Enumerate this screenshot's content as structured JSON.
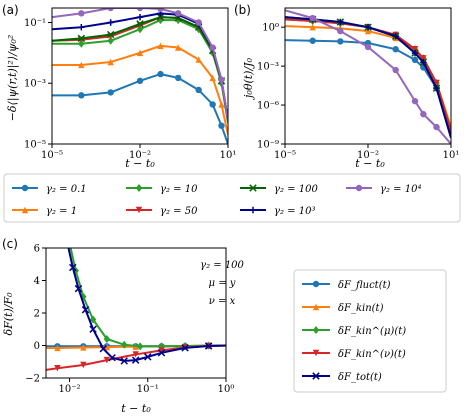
{
  "panels": {
    "a": {
      "label": "(a)",
      "ylabel": "−δ⟨|ψ(r,t)|²⟩/ψ₀²",
      "xlabel": "t − t₀",
      "xticks": [
        "10⁻⁵",
        "10⁻²",
        "10¹"
      ],
      "yticks": [
        "10⁻⁵",
        "10⁻³",
        "10⁻¹"
      ]
    },
    "b": {
      "label": "(b)",
      "ylabel": "j₀θ(t)/J₀",
      "xlabel": "t − t₀",
      "xticks": [
        "10⁻⁵",
        "10⁻²",
        "10¹"
      ],
      "yticks": [
        "10⁻⁹",
        "10⁻⁶",
        "10⁻³",
        "10⁰"
      ]
    },
    "c": {
      "label": "(c)",
      "ylabel": "δF(t)/F₀",
      "xlabel": "t − t₀",
      "xticks": [
        "10⁻²",
        "10⁻¹",
        "10⁰"
      ],
      "yticks": [
        "−2",
        "0",
        "2",
        "4",
        "6"
      ],
      "annotation": [
        "γ₂ = 100",
        "μ = y",
        "ν = x"
      ]
    }
  },
  "legend_top": [
    "γ₂ = 0.1",
    "γ₂ = 10",
    "γ₂ = 100",
    "γ₂ = 10⁴",
    "γ₂ = 1",
    "γ₂ = 50",
    "γ₂ = 10³"
  ],
  "legend_c": [
    "δF_fluct(t)",
    "δF_kin(t)",
    "δF_kin^(μ)(t)",
    "δF_kin^(ν)(t)",
    "δF_tot(t)"
  ],
  "colors": {
    "blue": "#1f77b4",
    "orange": "#ff7f0e",
    "green": "#2ca02c",
    "red": "#d62728",
    "purple": "#9467bd",
    "darkgreen": "#006400",
    "navy": "#00008b"
  },
  "chart_data": [
    {
      "type": "line",
      "title": "(a)",
      "xlabel": "t − t₀",
      "ylabel": "−δ⟨|ψ(r,t)|²⟩/ψ₀²",
      "x_scale": "log",
      "y_scale": "log",
      "xlim": [
        1e-05,
        10
      ],
      "ylim": [
        1e-05,
        0.3
      ],
      "series": [
        {
          "name": "γ₂ = 0.1",
          "color": "#1f77b4",
          "marker": "circle",
          "x": [
            1e-05,
            0.0001,
            0.001,
            0.01,
            0.05,
            0.2,
            1,
            3,
            6,
            10
          ],
          "y": [
            0.0004,
            0.0004,
            0.0005,
            0.0012,
            0.002,
            0.0015,
            0.0006,
            0.0002,
            4e-05,
            1e-05
          ]
        },
        {
          "name": "γ₂ = 1",
          "color": "#ff7f0e",
          "marker": "triangle",
          "x": [
            1e-05,
            0.0001,
            0.001,
            0.01,
            0.05,
            0.2,
            1,
            3,
            6,
            10
          ],
          "y": [
            0.004,
            0.004,
            0.005,
            0.01,
            0.017,
            0.015,
            0.006,
            0.0015,
            0.0002,
            2e-05
          ]
        },
        {
          "name": "γ₂ = 10",
          "color": "#2ca02c",
          "marker": "diamond",
          "x": [
            1e-05,
            0.0001,
            0.001,
            0.01,
            0.05,
            0.2,
            1,
            3,
            6,
            10
          ],
          "y": [
            0.02,
            0.02,
            0.025,
            0.06,
            0.12,
            0.12,
            0.06,
            0.01,
            0.001,
            5e-05
          ]
        },
        {
          "name": "γ₂ = 50",
          "color": "#d62728",
          "marker": "triangle-down",
          "x": [
            1e-05,
            0.0001,
            0.001,
            0.01,
            0.05,
            0.2,
            1,
            3,
            6,
            10
          ],
          "y": [
            0.025,
            0.027,
            0.035,
            0.08,
            0.15,
            0.14,
            0.07,
            0.012,
            0.0012,
            6e-05
          ]
        },
        {
          "name": "γ₂ = 100",
          "color": "#006400",
          "marker": "x",
          "x": [
            1e-05,
            0.0001,
            0.001,
            0.01,
            0.05,
            0.2,
            1,
            3,
            6,
            10
          ],
          "y": [
            0.025,
            0.03,
            0.04,
            0.09,
            0.15,
            0.14,
            0.07,
            0.012,
            0.0012,
            6e-05
          ]
        },
        {
          "name": "γ₂ = 10³",
          "color": "#00008b",
          "marker": "plus",
          "x": [
            1e-05,
            0.0001,
            0.001,
            0.01,
            0.05,
            0.2,
            1,
            3,
            6,
            10
          ],
          "y": [
            0.06,
            0.07,
            0.1,
            0.15,
            0.2,
            0.18,
            0.09,
            0.014,
            0.0013,
            6e-05
          ]
        },
        {
          "name": "γ₂ = 10⁴",
          "color": "#9467bd",
          "marker": "circle",
          "x": [
            1e-05,
            0.0001,
            0.001,
            0.01,
            0.05,
            0.2,
            1,
            3,
            6,
            10
          ],
          "y": [
            0.15,
            0.2,
            0.3,
            0.3,
            0.28,
            0.2,
            0.1,
            0.015,
            0.0013,
            6e-05
          ]
        }
      ]
    },
    {
      "type": "line",
      "title": "(b)",
      "xlabel": "t − t₀",
      "ylabel": "j₀θ(t)/J₀",
      "x_scale": "log",
      "y_scale": "log",
      "xlim": [
        1e-05,
        10
      ],
      "ylim": [
        1e-09,
        30
      ],
      "series": [
        {
          "name": "γ₂ = 0.1",
          "color": "#1f77b4",
          "marker": "circle",
          "x": [
            1e-05,
            0.0001,
            0.001,
            0.01,
            0.1,
            0.5,
            1,
            3,
            10
          ],
          "y": [
            0.1,
            0.09,
            0.08,
            0.06,
            0.02,
            0.003,
            0.0008,
            2e-05,
            5e-09
          ]
        },
        {
          "name": "γ₂ = 1",
          "color": "#ff7f0e",
          "marker": "triangle",
          "x": [
            1e-05,
            0.0001,
            0.001,
            0.01,
            0.1,
            0.5,
            1,
            3,
            10
          ],
          "y": [
            1.2,
            1.0,
            0.8,
            0.5,
            0.15,
            0.015,
            0.003,
            5e-05,
            2e-08
          ]
        },
        {
          "name": "γ₂ = 10",
          "color": "#2ca02c",
          "marker": "diamond",
          "x": [
            1e-05,
            0.0001,
            0.001,
            0.01,
            0.1,
            0.5,
            1,
            3,
            10
          ],
          "y": [
            4,
            3,
            2,
            1,
            0.25,
            0.02,
            0.004,
            5e-05,
            1e-08
          ]
        },
        {
          "name": "γ₂ = 50",
          "color": "#d62728",
          "marker": "triangle-down",
          "x": [
            1e-05,
            0.0001,
            0.001,
            0.01,
            0.1,
            0.5,
            1,
            3,
            10
          ],
          "y": [
            4,
            3,
            2,
            1,
            0.25,
            0.02,
            0.004,
            5e-05,
            1e-08
          ]
        },
        {
          "name": "γ₂ = 100",
          "color": "#006400",
          "marker": "x",
          "x": [
            1e-05,
            0.0001,
            0.001,
            0.01,
            0.1,
            0.5,
            1,
            3,
            10
          ],
          "y": [
            6,
            4,
            2.5,
            1,
            0.2,
            0.01,
            0.002,
            2e-05,
            3e-09
          ]
        },
        {
          "name": "γ₂ = 10³",
          "color": "#00008b",
          "marker": "plus",
          "x": [
            1e-05,
            0.0001,
            0.001,
            0.01,
            0.1,
            0.5,
            1,
            3,
            10
          ],
          "y": [
            6,
            4,
            2.5,
            1,
            0.2,
            0.01,
            0.002,
            2e-05,
            3e-09
          ]
        },
        {
          "name": "γ₂ = 10⁴",
          "color": "#9467bd",
          "marker": "circle",
          "x": [
            1e-05,
            0.0001,
            0.001,
            0.01,
            0.1,
            0.5,
            1,
            3,
            10
          ],
          "y": [
            20,
            5,
            0.5,
            0.03,
            0.0005,
            2e-06,
            2e-07,
            2e-08,
            1e-09
          ]
        }
      ]
    },
    {
      "type": "line",
      "title": "(c)",
      "xlabel": "t − t₀",
      "ylabel": "δF(t)/F₀",
      "x_scale": "log",
      "y_scale": "linear",
      "xlim": [
        0.005,
        1
      ],
      "ylim": [
        -2,
        6
      ],
      "series": [
        {
          "name": "δF_fluct(t)",
          "color": "#1f77b4",
          "marker": "circle",
          "x": [
            0.005,
            0.007,
            0.015,
            0.03,
            0.07,
            0.15,
            0.3,
            0.6,
            1
          ],
          "y": [
            -0.05,
            -0.05,
            -0.05,
            -0.05,
            -0.05,
            -0.05,
            -0.04,
            -0.02,
            -0.01
          ]
        },
        {
          "name": "δF_kin(t)",
          "color": "#ff7f0e",
          "marker": "triangle",
          "x": [
            0.005,
            0.007,
            0.015,
            0.03,
            0.07,
            0.15,
            0.3,
            0.6,
            1
          ],
          "y": [
            -0.15,
            -0.15,
            -0.12,
            -0.1,
            -0.07,
            -0.05,
            -0.03,
            -0.01,
            0
          ]
        },
        {
          "name": "δF_kin^(μ)(t)",
          "color": "#2ca02c",
          "marker": "diamond",
          "x": [
            0.01,
            0.012,
            0.015,
            0.02,
            0.03,
            0.05,
            0.08,
            0.15,
            0.3,
            0.6,
            1
          ],
          "y": [
            6.3,
            4.6,
            3.0,
            1.6,
            0.4,
            0.05,
            -0.05,
            -0.05,
            -0.03,
            -0.01,
            0
          ]
        },
        {
          "name": "δF_kin^(ν)(t)",
          "color": "#d62728",
          "marker": "triangle-down",
          "x": [
            0.005,
            0.007,
            0.015,
            0.03,
            0.07,
            0.15,
            0.3,
            0.6,
            1
          ],
          "y": [
            -1.5,
            -1.4,
            -1.2,
            -0.9,
            -0.55,
            -0.3,
            -0.12,
            -0.03,
            0
          ]
        },
        {
          "name": "δF_tot(t)",
          "color": "#00008b",
          "marker": "x",
          "x": [
            0.0095,
            0.011,
            0.013,
            0.016,
            0.02,
            0.027,
            0.035,
            0.05,
            0.07,
            0.1,
            0.15,
            0.3,
            0.6,
            1
          ],
          "y": [
            6.2,
            4.8,
            3.5,
            2.2,
            1.0,
            -0.2,
            -0.75,
            -0.95,
            -0.9,
            -0.7,
            -0.45,
            -0.15,
            -0.03,
            0
          ]
        }
      ]
    }
  ]
}
